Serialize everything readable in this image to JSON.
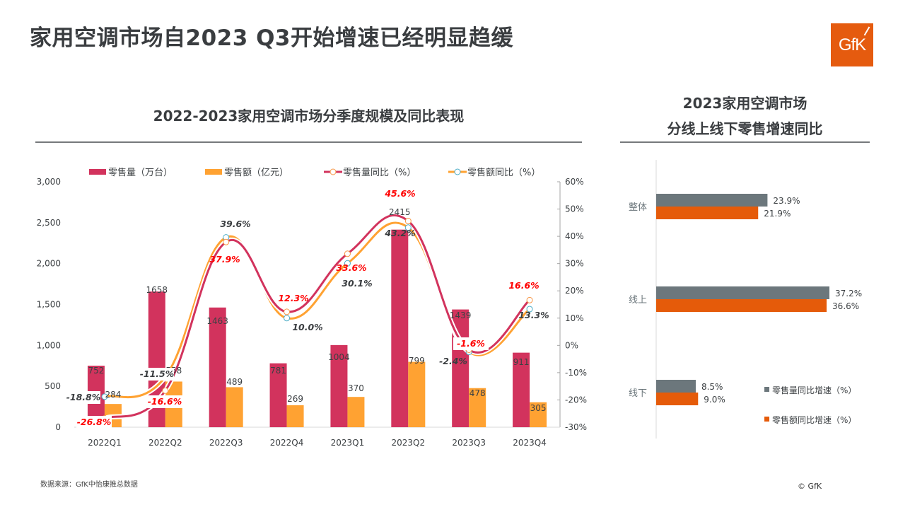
{
  "header": {
    "title": "家用空调市场自2023 Q3开始增速已经明显趋缓",
    "logo_text": "GfK"
  },
  "footer": {
    "source": "数据来源：GfK中怡康推总数据",
    "copyright": "© GfK"
  },
  "colors": {
    "volume": "#d2335d",
    "value": "#ffa232",
    "volume_yoy_label": "#ff0000",
    "value_yoy_label": "#3a3d40",
    "online_offline_volume": "#6c777c",
    "online_offline_value": "#e55b0a",
    "logo": "#e55b0f"
  },
  "chart_data": [
    {
      "type": "bar",
      "title": "2022-2023家用空调市场分季度规模及同比表现",
      "categories": [
        "2022Q1",
        "2022Q2",
        "2022Q3",
        "2022Q4",
        "2023Q1",
        "2023Q2",
        "2023Q3",
        "2023Q4"
      ],
      "series": [
        {
          "name": "零售量（万台）",
          "kind": "bar",
          "axis": "left",
          "values": [
            752,
            1658,
            1463,
            781,
            1004,
            2415,
            1439,
            911
          ]
        },
        {
          "name": "零售额（亿元）",
          "kind": "bar",
          "axis": "left",
          "values": [
            284,
            558,
            489,
            269,
            370,
            799,
            478,
            305
          ]
        },
        {
          "name": "零售量同比（%）",
          "kind": "line",
          "axis": "right",
          "values": [
            -26.8,
            -16.6,
            37.9,
            12.3,
            33.6,
            45.6,
            -1.6,
            16.6
          ],
          "labels": [
            "-26.8%",
            "-16.6%",
            "37.9%",
            "12.3%",
            "33.6%",
            "45.6%",
            "-1.6%",
            "16.6%"
          ]
        },
        {
          "name": "零售额同比（%）",
          "kind": "line",
          "axis": "right",
          "values": [
            -18.8,
            -11.5,
            39.6,
            10.0,
            30.1,
            43.2,
            -2.4,
            13.3
          ],
          "labels": [
            "-18.8%",
            "-11.5%",
            "39.6%",
            "10.0%",
            "30.1%",
            "43.2%",
            "-2.4%",
            "13.3%"
          ]
        }
      ],
      "ylim_left": [
        0,
        3000
      ],
      "yticks_left": [
        "0",
        "500",
        "1,000",
        "1,500",
        "2,000",
        "2,500",
        "3,000"
      ],
      "ylim_right": [
        -30,
        60
      ],
      "yticks_right": [
        "-30%",
        "-20%",
        "-10%",
        "0%",
        "10%",
        "20%",
        "30%",
        "40%",
        "50%",
        "60%"
      ],
      "legend": [
        "零售量（万台）",
        "零售额（亿元）",
        "零售量同比（%）",
        "零售额同比（%）"
      ],
      "legend_position": "top",
      "grid": false,
      "xlabel": "",
      "ylabel": ""
    },
    {
      "type": "bar",
      "orientation": "horizontal",
      "title": "2023家用空调市场\n分线上线下零售增速同比",
      "title_lines": [
        "2023家用空调市场",
        "分线上线下零售增速同比"
      ],
      "categories": [
        "整体",
        "线上",
        "线下"
      ],
      "series": [
        {
          "name": "零售量同比增速（%）",
          "values": [
            23.9,
            37.2,
            8.5
          ],
          "labels": [
            "23.9%",
            "37.2%",
            "8.5%"
          ]
        },
        {
          "name": "零售额同比增速（%）",
          "values": [
            21.9,
            36.6,
            9.0
          ],
          "labels": [
            "21.9%",
            "36.6%",
            "9.0%"
          ]
        }
      ],
      "xlim": [
        0,
        40
      ],
      "legend": [
        "零售量同比增速（%）",
        "零售额同比增速（%）"
      ],
      "legend_position": "bottom-right",
      "grid": false
    }
  ]
}
